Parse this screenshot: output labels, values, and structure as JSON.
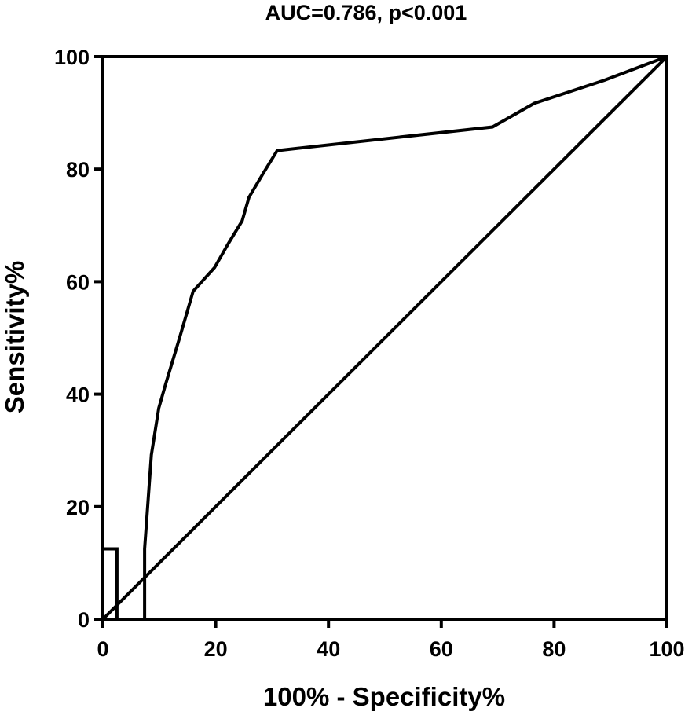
{
  "chart_data": {
    "type": "line",
    "title": "AUC=0.786, p<0.001",
    "xlabel": "100% - Specificity%",
    "ylabel": "Sensitivity%",
    "xlim": [
      0,
      100
    ],
    "ylim": [
      0,
      100
    ],
    "x_ticks": [
      "0",
      "20",
      "40",
      "60",
      "80",
      "100"
    ],
    "y_ticks": [
      "0",
      "20",
      "40",
      "60",
      "80",
      "100"
    ],
    "grid": false,
    "legend": "none",
    "line_color": "#000000",
    "series": [
      {
        "kind": "step",
        "x": [
          0,
          0,
          2.5,
          2.5,
          7.4,
          7.4,
          8.6,
          8.6,
          9.9,
          9.9,
          11.1,
          11.1,
          13.6,
          13.6,
          16.0,
          16.0,
          19.8,
          19.8,
          22.2,
          22.2,
          24.7,
          24.7,
          25.9,
          25.9,
          28.4,
          28.4,
          30.9,
          30.9,
          69.1,
          69.1,
          76.5,
          76.5,
          88.9,
          88.9,
          100
        ],
        "y": [
          0,
          12.5,
          12.5,
          0,
          0,
          12.5,
          29.2,
          29.2,
          37.5,
          37.5,
          41.7,
          41.7,
          50,
          50,
          58.3,
          58.3,
          62.5,
          62.5,
          66.7,
          66.7,
          70.8,
          70.8,
          75,
          75,
          79.2,
          79.2,
          83.3,
          83.3,
          87.5,
          87.5,
          91.7,
          91.7,
          95.8,
          95.8,
          100
        ]
      },
      {
        "kind": "reference",
        "x": [
          0,
          100
        ],
        "y": [
          0,
          100
        ]
      }
    ]
  }
}
